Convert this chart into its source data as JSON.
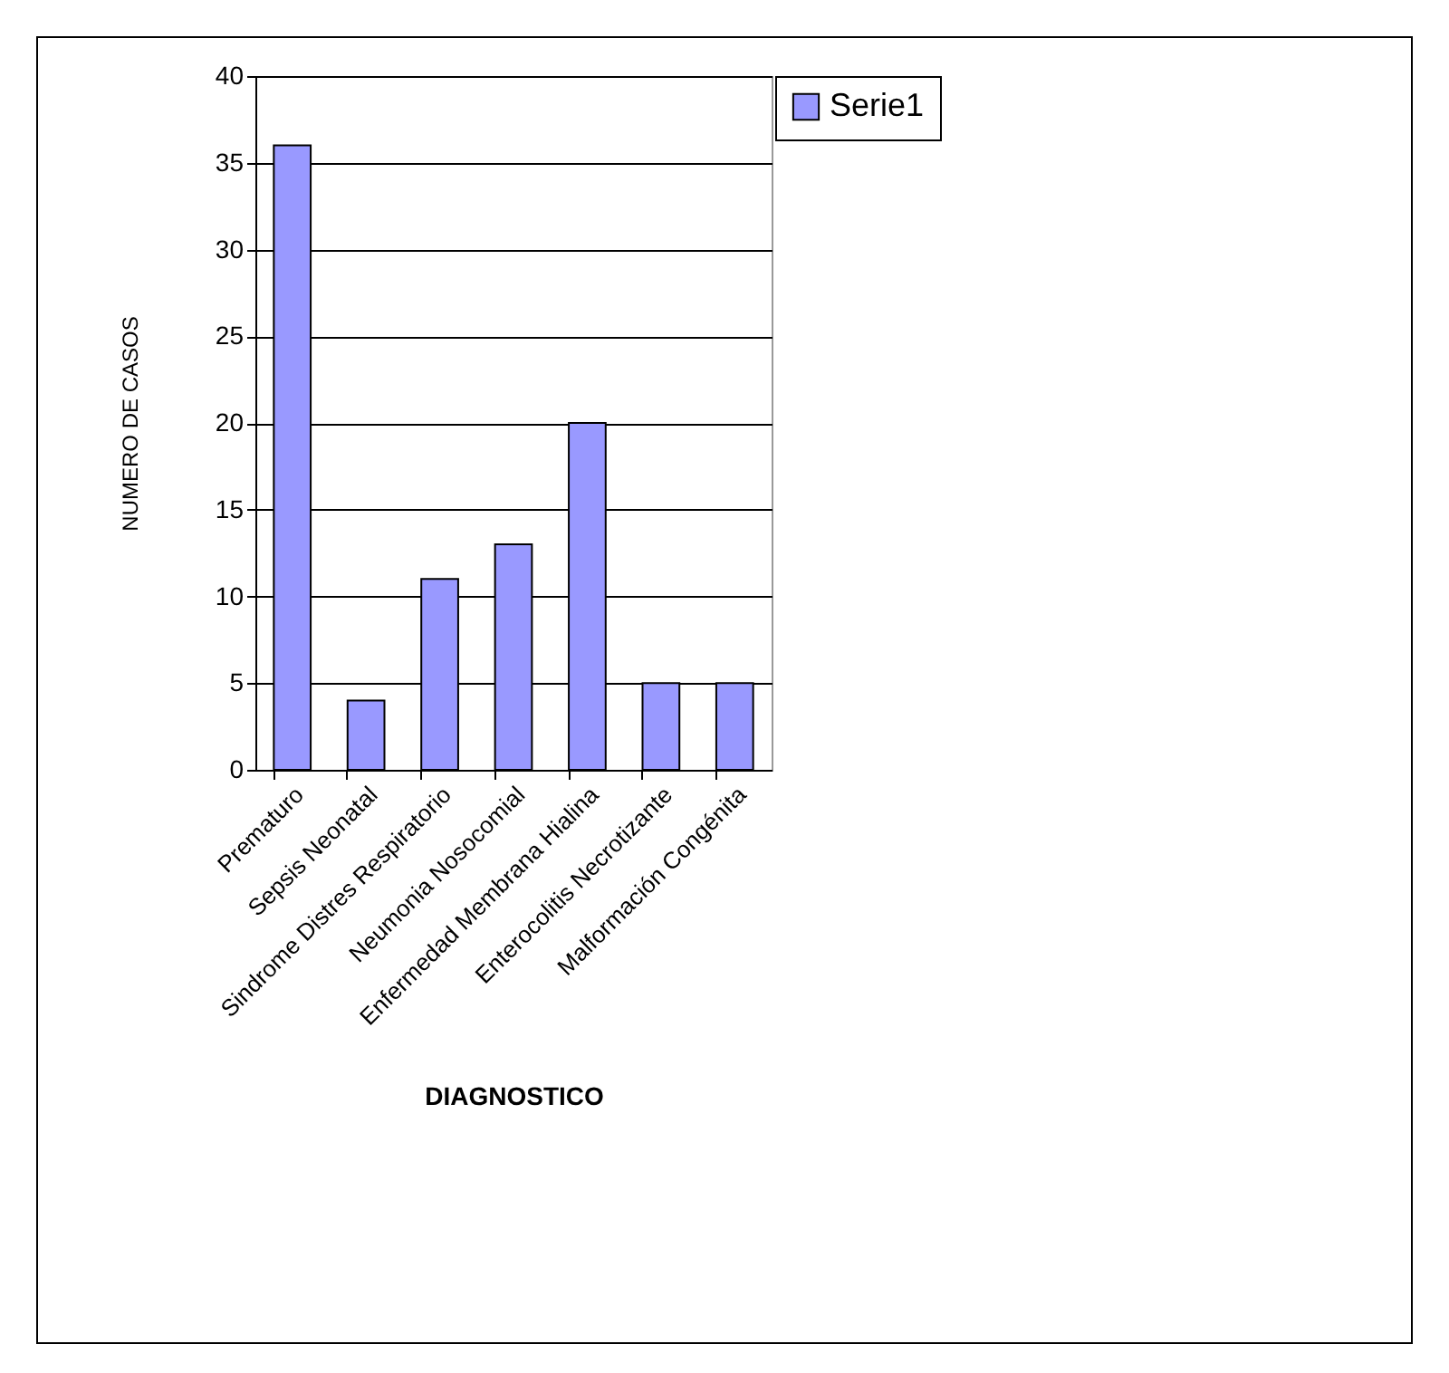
{
  "chart_data": {
    "type": "bar",
    "xlabel": "DIAGNOSTICO",
    "ylabel": "NUMERO DE CASOS",
    "categories": [
      "Prematuro",
      "Sepsis Neonatal",
      "Sindrome Distres Respiratorio",
      "Neumonia Nosocomial",
      "Enfermedad Membrana Hialina",
      "Enterocolitis Necrotizante",
      "Malformación Congénita"
    ],
    "series": [
      {
        "name": "Serie1",
        "color": "#9999ff",
        "values": [
          36,
          4,
          11,
          13,
          20,
          5,
          5
        ]
      }
    ],
    "ylim": [
      0,
      40
    ],
    "yticks": [
      0,
      5,
      10,
      15,
      20,
      25,
      30,
      35,
      40
    ],
    "grid": "y",
    "legend": "right"
  }
}
